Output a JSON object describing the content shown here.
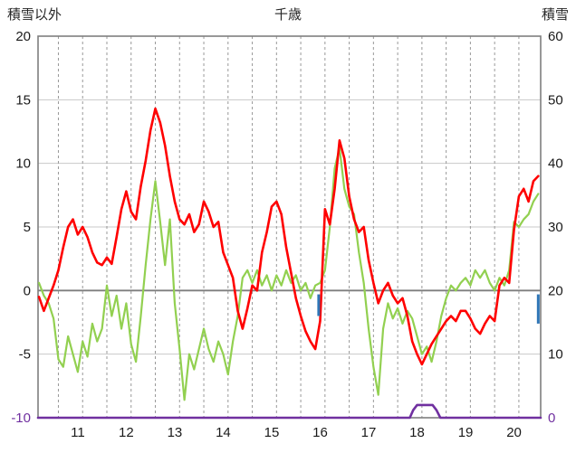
{
  "header": {
    "left_axis_title": "積雪以外",
    "station_title": "千歳",
    "right_axis_title": "積雪"
  },
  "chart_data": {
    "type": "line",
    "title": "千歳",
    "left_axis": {
      "label": "積雪以外",
      "min": -10,
      "max": 20,
      "ticks": [
        {
          "label": "20",
          "value": 20,
          "color": "#1a1a1a"
        },
        {
          "label": "15",
          "value": 15,
          "color": "#1a1a1a"
        },
        {
          "label": "10",
          "value": 10,
          "color": "#1a1a1a"
        },
        {
          "label": "5",
          "value": 5,
          "color": "#1a1a1a"
        },
        {
          "label": "0",
          "value": 0,
          "color": "#1a1a1a"
        },
        {
          "label": "-5",
          "value": -5,
          "color": "#1a1a1a"
        },
        {
          "label": "-10",
          "value": -10,
          "color": "#7030A0"
        }
      ]
    },
    "right_axis": {
      "label": "積雪",
      "min": 0,
      "max": 60,
      "ticks": [
        {
          "label": "60",
          "value": 60,
          "color": "#1a1a1a"
        },
        {
          "label": "50",
          "value": 50,
          "color": "#1a1a1a"
        },
        {
          "label": "40",
          "value": 40,
          "color": "#1a1a1a"
        },
        {
          "label": "30",
          "value": 30,
          "color": "#1a1a1a"
        },
        {
          "label": "20",
          "value": 20,
          "color": "#1a1a1a"
        },
        {
          "label": "10",
          "value": 10,
          "color": "#1a1a1a"
        },
        {
          "label": "0",
          "value": 0,
          "color": "#7030A0"
        }
      ]
    },
    "x_axis": {
      "domain": [
        10.58,
        20.95
      ],
      "grid_start": 11.0,
      "grid_end": 20.5,
      "grid_step": 0.5,
      "labels": [
        "11",
        "12",
        "13",
        "14",
        "15",
        "16",
        "17",
        "18",
        "19",
        "20"
      ],
      "label_positions": [
        11.4,
        12.4,
        13.4,
        14.4,
        15.4,
        16.4,
        17.4,
        18.4,
        19.4,
        20.4
      ],
      "label_color": "#1a1a1a"
    },
    "grid": {
      "h_color": "#c8c8c8",
      "zero_color": "#7f7f7f",
      "v_color": "#999999",
      "border_color": "#7f7f7f"
    },
    "series": [
      {
        "name": "temperature-green",
        "color": "#92D050",
        "width": 2.2,
        "axis": "left",
        "x_start": 10.6,
        "x_step": 0.1,
        "values": [
          0.6,
          -0.4,
          -1.0,
          -2.2,
          -5.4,
          -6.0,
          -3.6,
          -5.0,
          -6.4,
          -4.0,
          -5.2,
          -2.6,
          -4.0,
          -3.0,
          0.4,
          -2.0,
          -0.4,
          -3.0,
          -1.0,
          -4.2,
          -5.6,
          -2.0,
          2.0,
          5.6,
          8.6,
          5.4,
          2.0,
          5.6,
          -1.0,
          -4.6,
          -8.6,
          -5.0,
          -6.2,
          -4.6,
          -3.0,
          -4.6,
          -5.6,
          -4.0,
          -5.0,
          -6.6,
          -4.0,
          -2.0,
          1.0,
          1.6,
          0.6,
          1.6,
          0.4,
          1.2,
          0.0,
          1.2,
          0.4,
          1.6,
          0.6,
          1.2,
          0.0,
          0.6,
          -0.6,
          0.4,
          0.6,
          1.6,
          5.0,
          9.6,
          11.2,
          8.0,
          6.6,
          6.0,
          3.0,
          0.6,
          -3.0,
          -6.0,
          -8.2,
          -3.0,
          -1.0,
          -2.2,
          -1.4,
          -2.6,
          -1.6,
          -2.2,
          -3.6,
          -5.0,
          -4.4,
          -5.6,
          -4.0,
          -2.0,
          -0.6,
          0.4,
          0.0,
          0.6,
          1.0,
          0.4,
          1.6,
          1.0,
          1.6,
          0.6,
          0.0,
          1.0,
          0.4,
          1.6,
          5.4,
          5.0,
          5.6,
          6.0,
          7.0,
          7.6
        ]
      },
      {
        "name": "temperature-red",
        "color": "#FF0000",
        "width": 2.6,
        "axis": "left",
        "x_start": 10.6,
        "x_step": 0.1,
        "values": [
          -0.5,
          -1.6,
          -0.6,
          0.4,
          1.6,
          3.4,
          5.0,
          5.6,
          4.4,
          5.0,
          4.2,
          3.0,
          2.2,
          2.0,
          2.6,
          2.1,
          4.2,
          6.4,
          7.8,
          6.2,
          5.6,
          8.2,
          10.2,
          12.6,
          14.3,
          13.2,
          11.4,
          9.0,
          7.0,
          5.6,
          5.2,
          6.0,
          4.6,
          5.2,
          7.0,
          6.2,
          5.0,
          5.4,
          3.0,
          2.0,
          1.0,
          -1.6,
          -3.0,
          -1.4,
          0.4,
          0.0,
          3.0,
          4.6,
          6.6,
          7.0,
          6.0,
          3.4,
          1.4,
          -0.6,
          -2.0,
          -3.2,
          -4.0,
          -4.6,
          -2.4,
          6.4,
          5.2,
          8.0,
          11.8,
          10.4,
          7.4,
          5.6,
          4.6,
          5.0,
          2.4,
          0.6,
          -1.0,
          0.0,
          0.6,
          -0.4,
          -1.0,
          -0.6,
          -2.0,
          -4.0,
          -5.0,
          -5.8,
          -5.0,
          -4.2,
          -3.6,
          -3.0,
          -2.4,
          -2.0,
          -2.4,
          -1.6,
          -1.6,
          -2.2,
          -3.0,
          -3.4,
          -2.6,
          -2.0,
          -2.4,
          0.4,
          1.0,
          0.6,
          4.8,
          7.4,
          8.0,
          7.0,
          8.6,
          9.0
        ]
      },
      {
        "name": "snow-depth-purple",
        "color": "#7030A0",
        "width": 2.6,
        "axis": "right",
        "points": [
          [
            10.58,
            0
          ],
          [
            18.25,
            0
          ],
          [
            18.32,
            1.2
          ],
          [
            18.4,
            2
          ],
          [
            18.72,
            2
          ],
          [
            18.8,
            1.2
          ],
          [
            18.88,
            0
          ],
          [
            20.95,
            0
          ]
        ]
      }
    ],
    "marks": [
      {
        "name": "precipitation-mark-blue",
        "color": "#2E75B6",
        "axis": "left",
        "x": 16.37,
        "y1": -0.3,
        "y2": -2.0
      },
      {
        "name": "precipitation-mark-blue",
        "color": "#2E75B6",
        "axis": "left",
        "x": 20.9,
        "y1": -0.3,
        "y2": -2.6
      }
    ]
  }
}
